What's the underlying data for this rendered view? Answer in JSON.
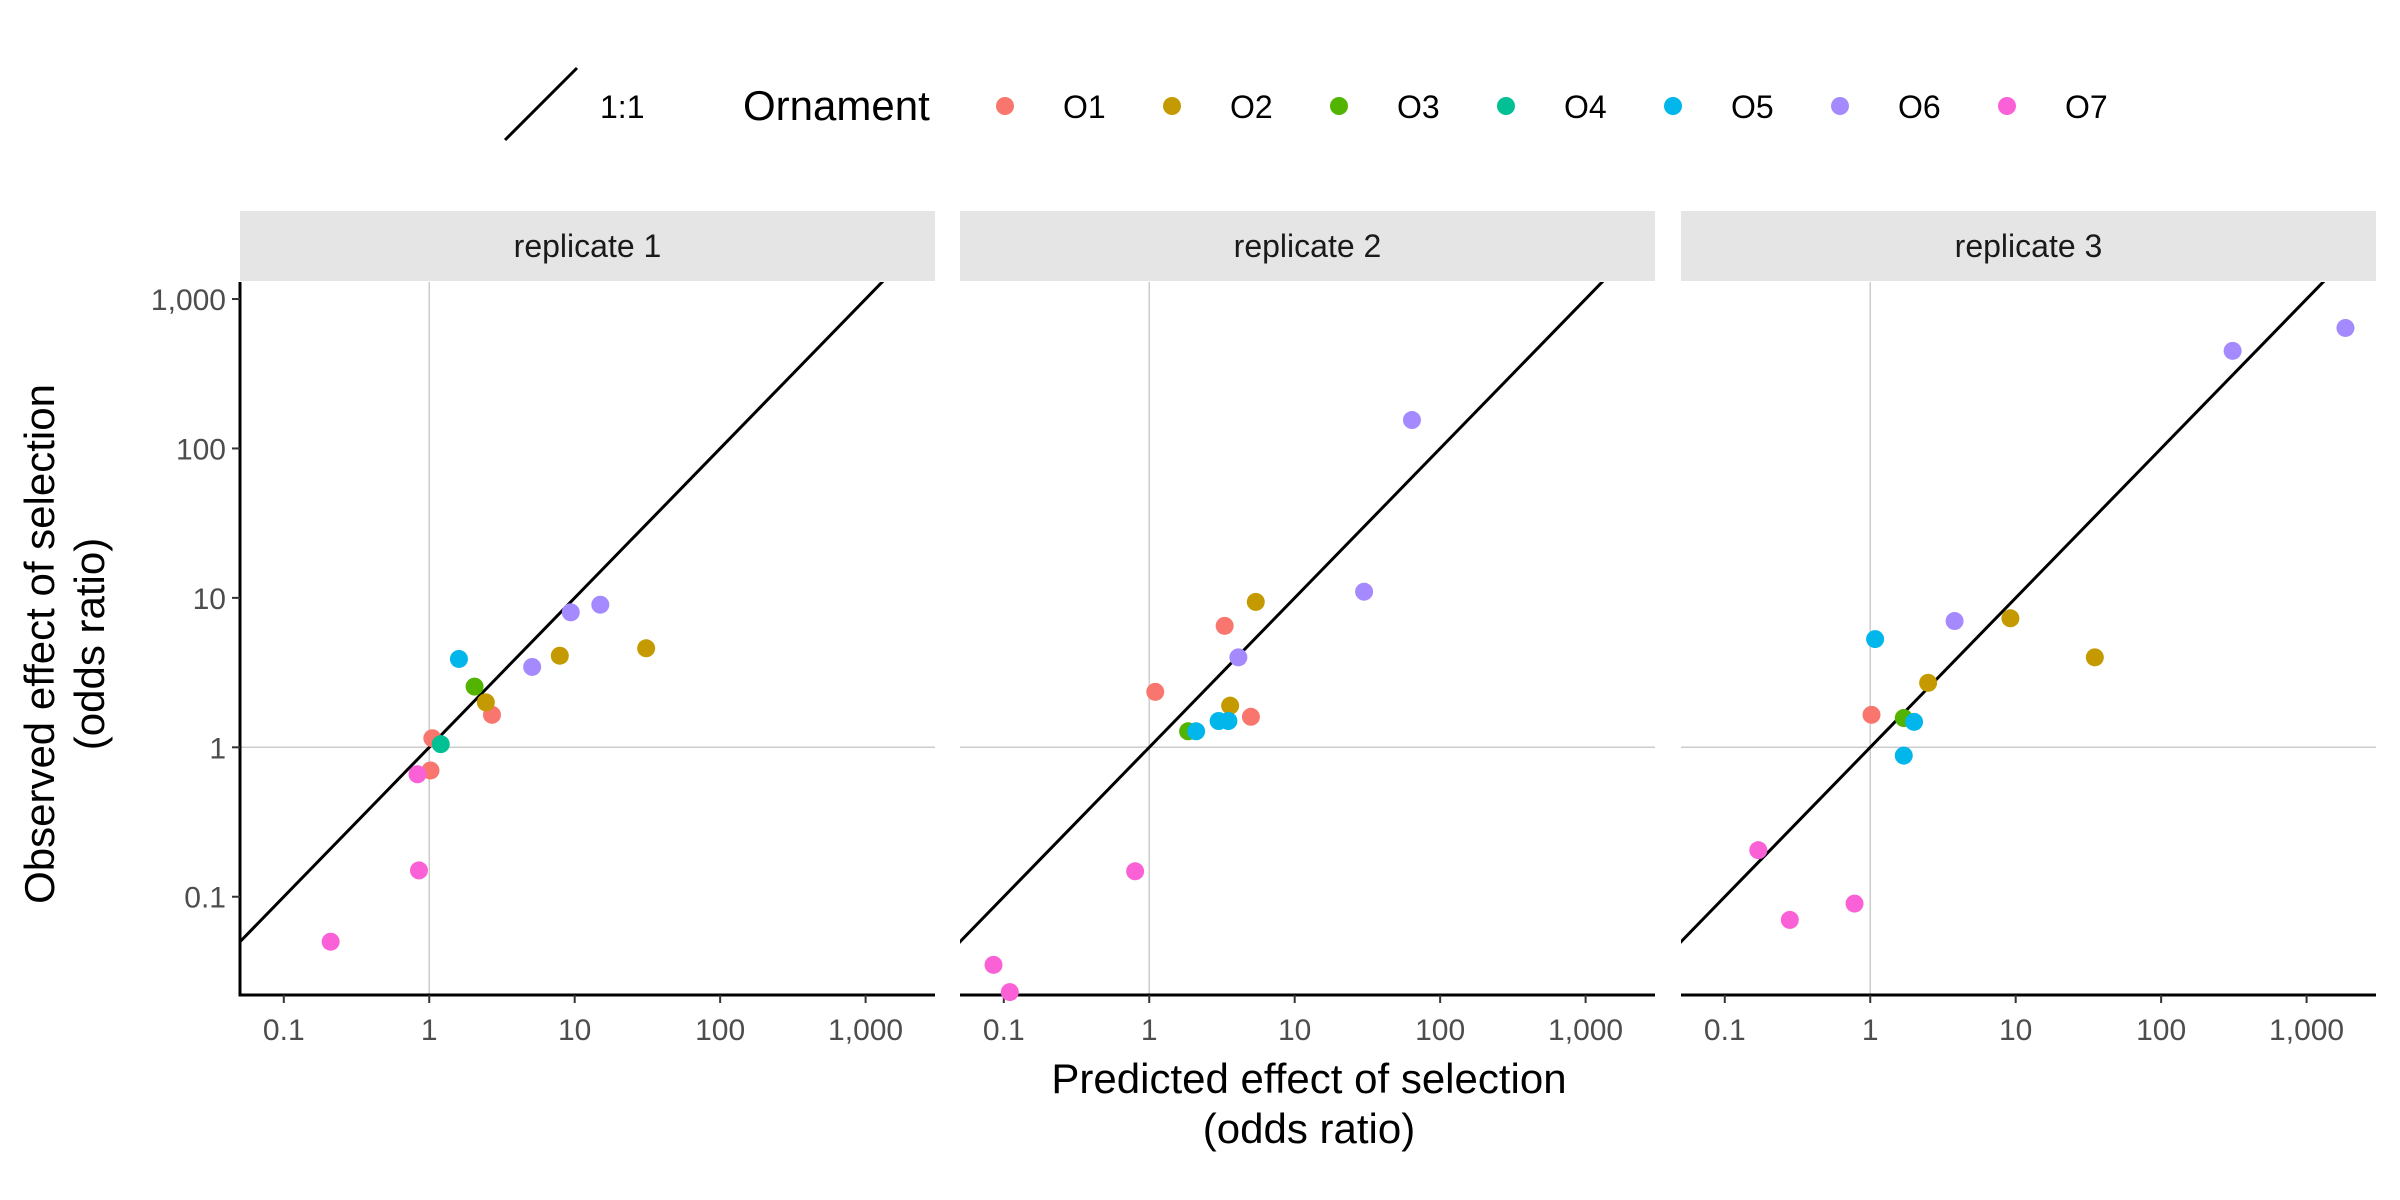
{
  "chart_data": {
    "type": "scatter",
    "x_label_lines": [
      "Predicted effect of selection",
      "(odds ratio)"
    ],
    "y_label_lines": [
      "Observed effect of selection",
      "(odds ratio)"
    ],
    "x_scale": "log10",
    "y_scale": "log10",
    "xlim": [
      0.05,
      3000
    ],
    "ylim": [
      0.022,
      1300
    ],
    "x_ticks": [
      0.1,
      1,
      10,
      100,
      1000
    ],
    "x_tick_labels": [
      "0.1",
      "1",
      "10",
      "100",
      "1,000"
    ],
    "y_ticks": [
      0.1,
      1,
      10,
      100,
      1000
    ],
    "y_tick_labels": [
      "0.1",
      "1",
      "10",
      "100",
      "1,000"
    ],
    "reference_lines": {
      "x": 1,
      "y": 1
    },
    "identity_line_label": "1:1",
    "legend": {
      "title": "Ornament",
      "position": "top",
      "entries": [
        {
          "name": "O1",
          "color": "#F8766D"
        },
        {
          "name": "O2",
          "color": "#C49A00"
        },
        {
          "name": "O3",
          "color": "#53B400"
        },
        {
          "name": "O4",
          "color": "#00C094"
        },
        {
          "name": "O5",
          "color": "#00B6EB"
        },
        {
          "name": "O6",
          "color": "#A58AFF"
        },
        {
          "name": "O7",
          "color": "#FB61D7"
        }
      ]
    },
    "panels": [
      {
        "label": "replicate 1",
        "points": [
          {
            "ornament": "O1",
            "x": 1.05,
            "y": 1.15
          },
          {
            "ornament": "O1",
            "x": 1.02,
            "y": 0.7
          },
          {
            "ornament": "O1",
            "x": 2.7,
            "y": 1.65
          },
          {
            "ornament": "O2",
            "x": 2.45,
            "y": 2.0
          },
          {
            "ornament": "O2",
            "x": 7.9,
            "y": 4.1
          },
          {
            "ornament": "O2",
            "x": 31,
            "y": 4.6
          },
          {
            "ornament": "O3",
            "x": 2.05,
            "y": 2.55
          },
          {
            "ornament": "O4",
            "x": 1.2,
            "y": 1.05
          },
          {
            "ornament": "O5",
            "x": 1.6,
            "y": 3.9
          },
          {
            "ornament": "O6",
            "x": 5.1,
            "y": 3.45
          },
          {
            "ornament": "O6",
            "x": 9.4,
            "y": 8.0
          },
          {
            "ornament": "O6",
            "x": 15,
            "y": 9.0
          },
          {
            "ornament": "O7",
            "x": 0.83,
            "y": 0.66
          },
          {
            "ornament": "O7",
            "x": 0.85,
            "y": 0.15
          },
          {
            "ornament": "O7",
            "x": 0.21,
            "y": 0.05
          }
        ]
      },
      {
        "label": "replicate 2",
        "points": [
          {
            "ornament": "O1",
            "x": 1.1,
            "y": 2.35
          },
          {
            "ornament": "O1",
            "x": 3.3,
            "y": 6.5
          },
          {
            "ornament": "O1",
            "x": 5.0,
            "y": 1.6
          },
          {
            "ornament": "O2",
            "x": 5.4,
            "y": 9.4
          },
          {
            "ornament": "O2",
            "x": 3.6,
            "y": 1.9
          },
          {
            "ornament": "O3",
            "x": 1.85,
            "y": 1.28
          },
          {
            "ornament": "O5",
            "x": 2.1,
            "y": 1.28
          },
          {
            "ornament": "O5",
            "x": 3.0,
            "y": 1.5
          },
          {
            "ornament": "O5",
            "x": 3.5,
            "y": 1.5
          },
          {
            "ornament": "O6",
            "x": 4.1,
            "y": 4.0
          },
          {
            "ornament": "O6",
            "x": 30,
            "y": 11.0
          },
          {
            "ornament": "O6",
            "x": 64,
            "y": 155
          },
          {
            "ornament": "O7",
            "x": 0.8,
            "y": 0.148
          },
          {
            "ornament": "O7",
            "x": 0.085,
            "y": 0.035
          },
          {
            "ornament": "O7",
            "x": 0.11,
            "y": 0.023
          }
        ]
      },
      {
        "label": "replicate 3",
        "points": [
          {
            "ornament": "O1",
            "x": 1.02,
            "y": 1.65
          },
          {
            "ornament": "O2",
            "x": 2.5,
            "y": 2.7
          },
          {
            "ornament": "O2",
            "x": 9.2,
            "y": 7.3
          },
          {
            "ornament": "O2",
            "x": 35,
            "y": 4.0
          },
          {
            "ornament": "O3",
            "x": 1.7,
            "y": 1.57
          },
          {
            "ornament": "O5",
            "x": 1.08,
            "y": 5.3
          },
          {
            "ornament": "O5",
            "x": 1.7,
            "y": 0.88
          },
          {
            "ornament": "O5",
            "x": 2.0,
            "y": 1.48
          },
          {
            "ornament": "O6",
            "x": 3.8,
            "y": 7.0
          },
          {
            "ornament": "O6",
            "x": 310,
            "y": 450
          },
          {
            "ornament": "O6",
            "x": 1850,
            "y": 640
          },
          {
            "ornament": "O7",
            "x": 0.17,
            "y": 0.205
          },
          {
            "ornament": "O7",
            "x": 0.28,
            "y": 0.07
          },
          {
            "ornament": "O7",
            "x": 0.78,
            "y": 0.09
          }
        ]
      }
    ]
  }
}
